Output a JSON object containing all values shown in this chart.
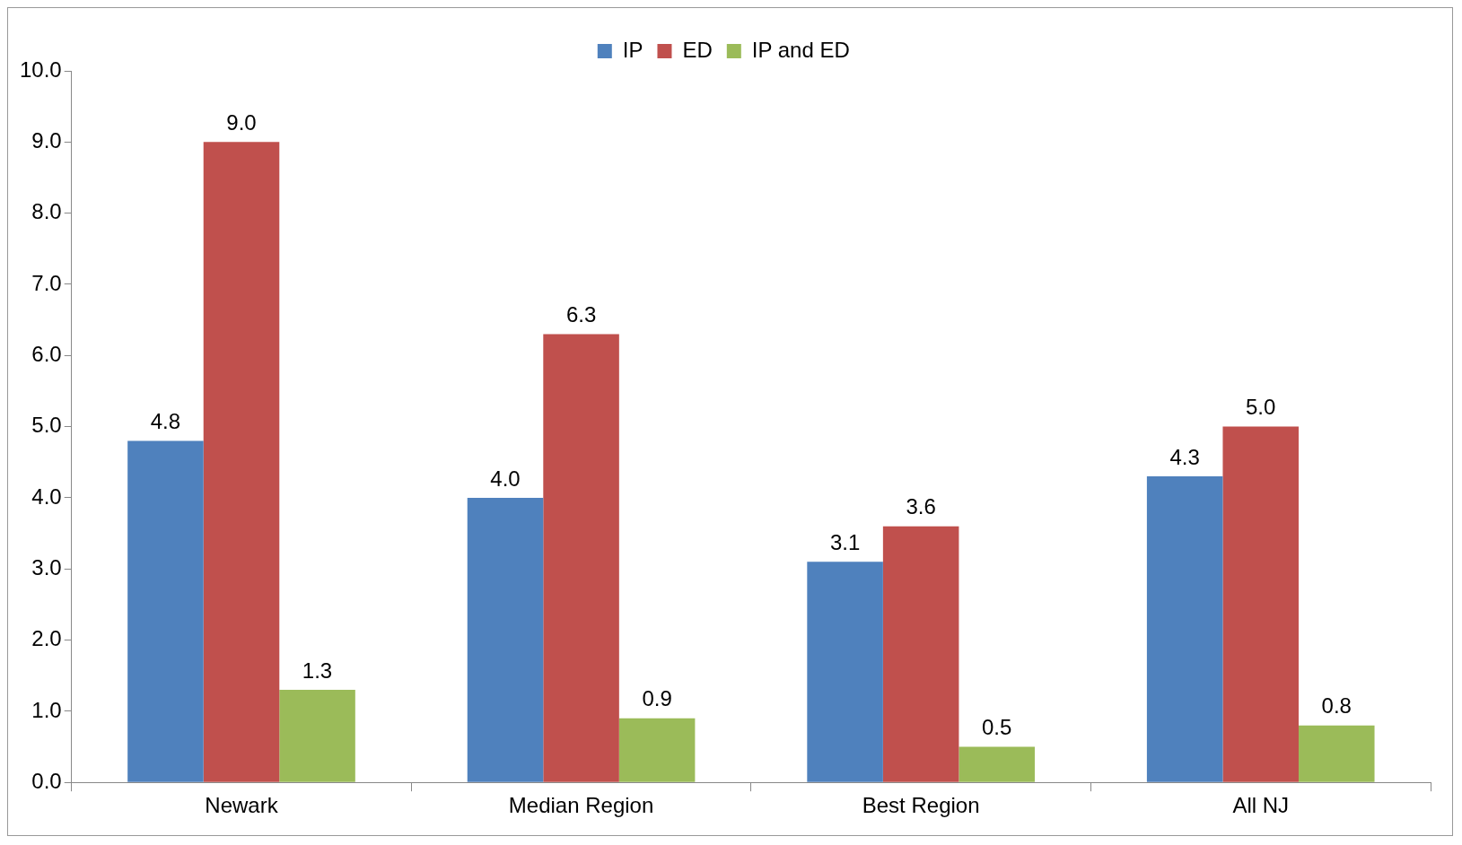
{
  "chart_data": {
    "type": "bar",
    "categories": [
      "Newark",
      "Median Region",
      "Best Region",
      "All NJ"
    ],
    "series": [
      {
        "name": "IP",
        "color": "#4f81bd",
        "values": [
          4.8,
          4.0,
          3.1,
          4.3
        ],
        "value_labels": [
          "4.8",
          "4.0",
          "3.1",
          "4.3"
        ]
      },
      {
        "name": "ED",
        "color": "#c0504d",
        "values": [
          9.0,
          6.3,
          3.6,
          5.0
        ],
        "value_labels": [
          "9.0",
          "6.3",
          "3.6",
          "5.0"
        ]
      },
      {
        "name": "IP and ED",
        "color": "#9bbb59",
        "values": [
          1.3,
          0.9,
          0.5,
          0.8
        ],
        "value_labels": [
          "1.3",
          "0.9",
          "0.5",
          "0.8"
        ]
      }
    ],
    "ylim": [
      0,
      10
    ],
    "yticks": [
      {
        "value": 0,
        "label": "0.0"
      },
      {
        "value": 1,
        "label": "1.0"
      },
      {
        "value": 2,
        "label": "2.0"
      },
      {
        "value": 3,
        "label": "3.0"
      },
      {
        "value": 4,
        "label": "4.0"
      },
      {
        "value": 5,
        "label": "5.0"
      },
      {
        "value": 6,
        "label": "6.0"
      },
      {
        "value": 7,
        "label": "7.0"
      },
      {
        "value": 8,
        "label": "8.0"
      },
      {
        "value": 9,
        "label": "9.0"
      },
      {
        "value": 10,
        "label": "10.0"
      }
    ],
    "grid": false,
    "legend": "top"
  }
}
